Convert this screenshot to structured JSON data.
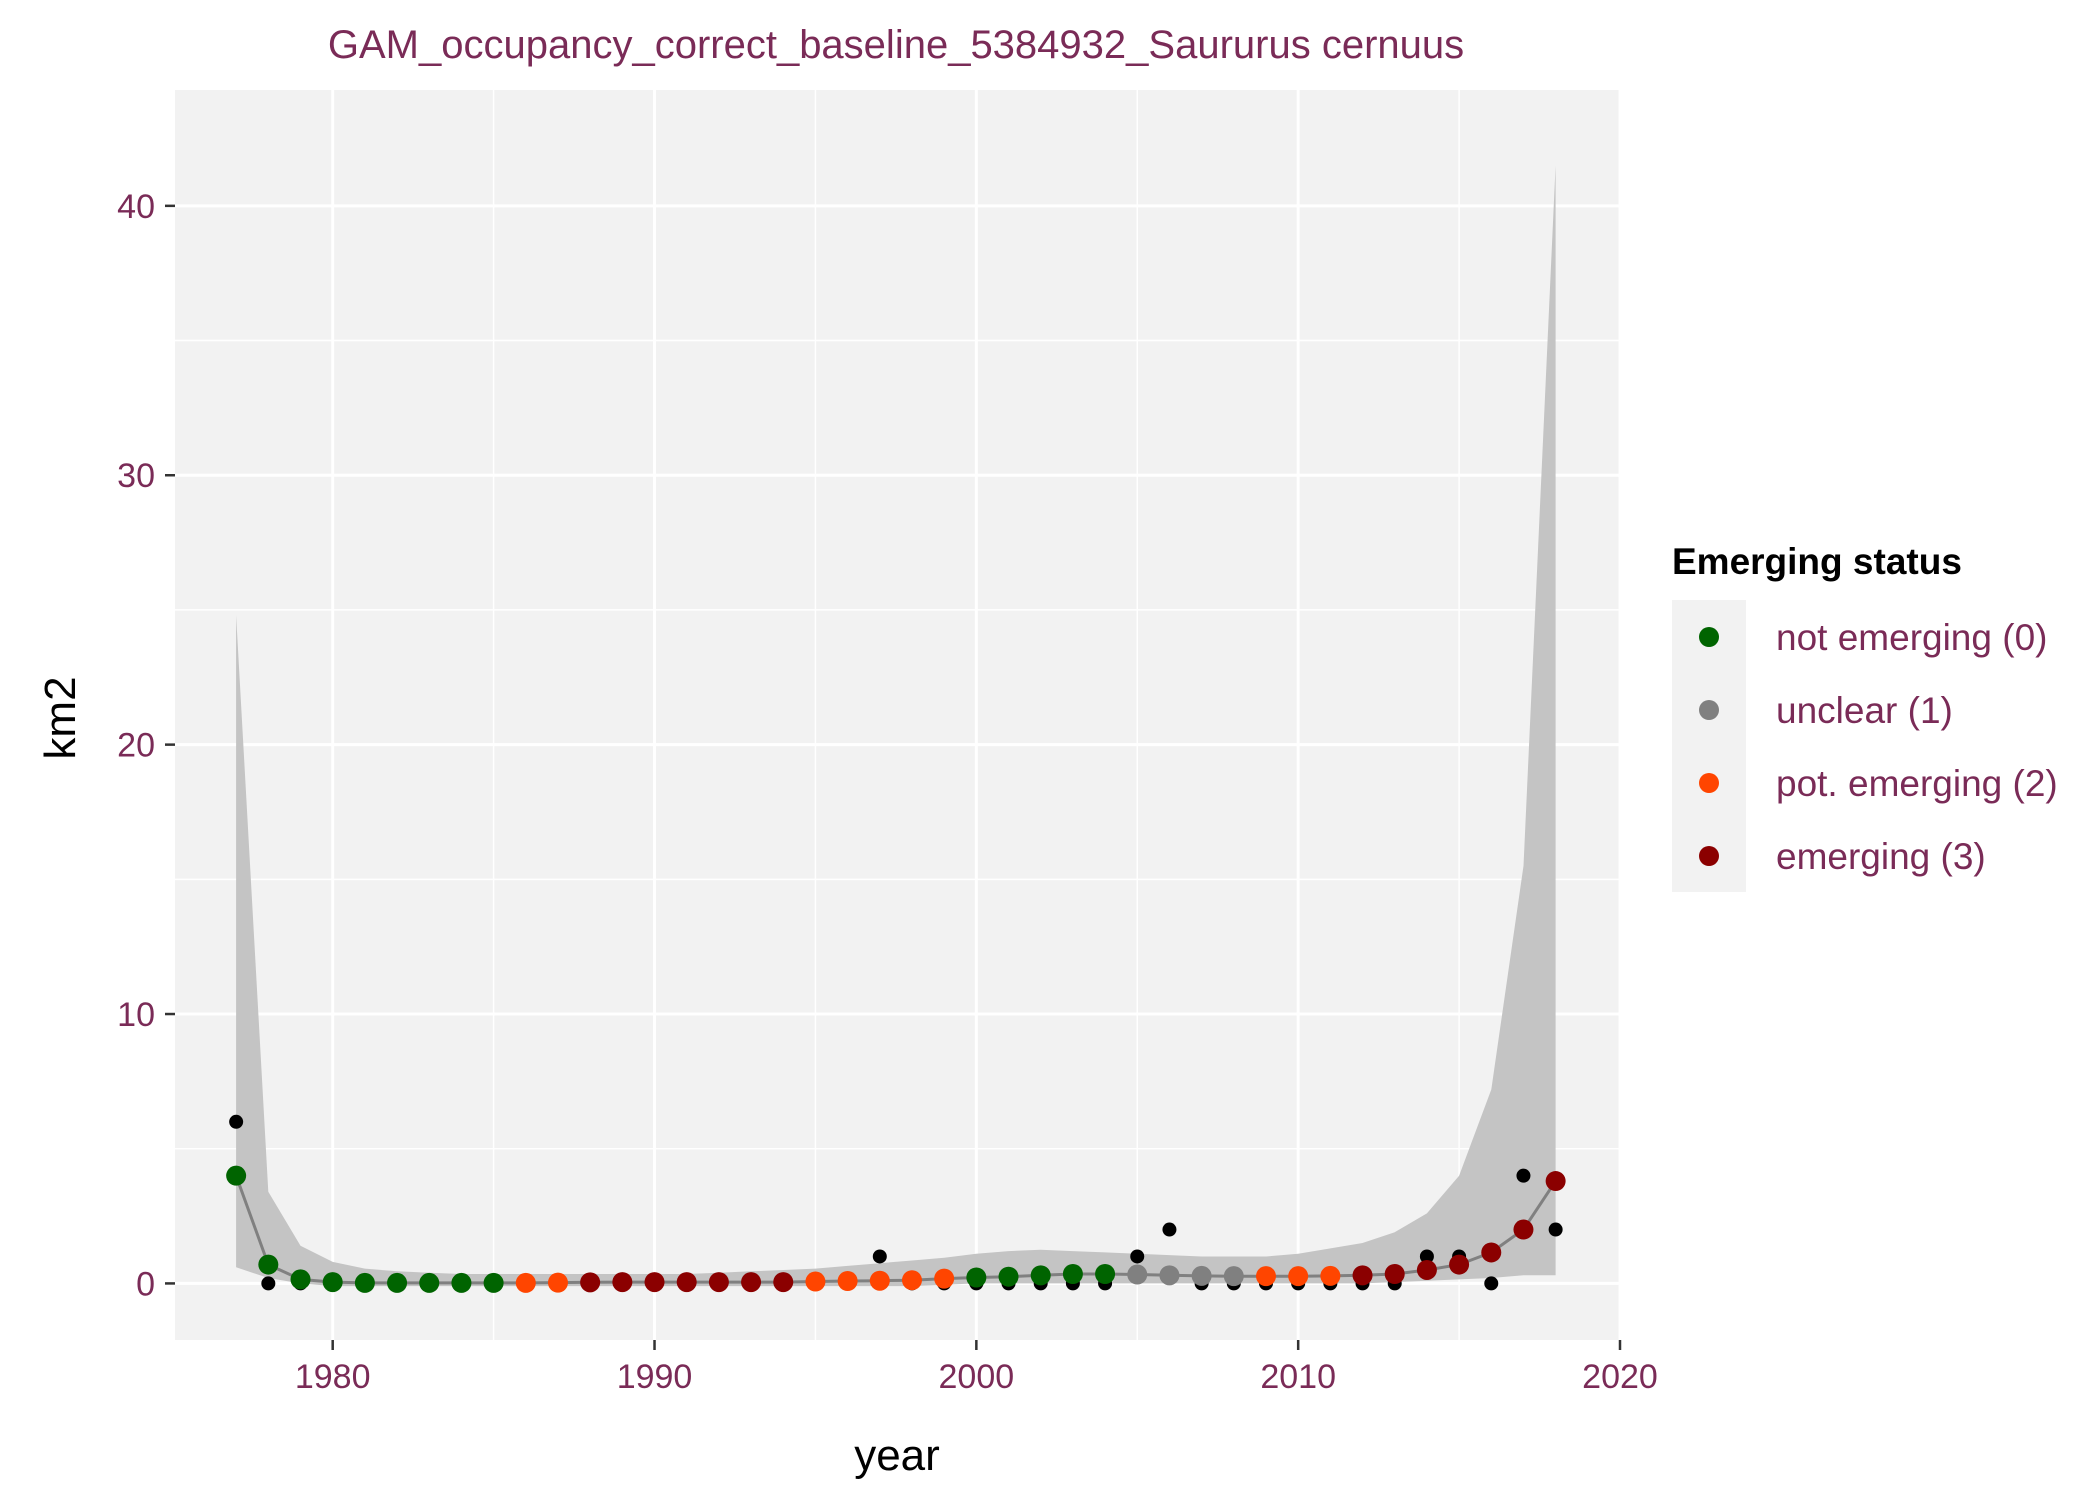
{
  "chart_data": {
    "type": "scatter",
    "title": "GAM_occupancy_correct_baseline_5384932_Saururus cernuus",
    "xlabel": "year",
    "ylabel": "km2",
    "xlim": [
      1975.1,
      2020
    ],
    "ylim": [
      -2.1,
      44.3
    ],
    "x_ticks": [
      1980,
      1990,
      2000,
      2010,
      2020
    ],
    "y_ticks": [
      0,
      10,
      20,
      30,
      40
    ],
    "grid": true,
    "legend": {
      "title": "Emerging status",
      "placement": "right",
      "entries": [
        {
          "label": "not emerging (0)",
          "color": "#006400"
        },
        {
          "label": "unclear (1)",
          "color": "#808080"
        },
        {
          "label": "pot. emerging (2)",
          "color": "#ff4500"
        },
        {
          "label": "emerging (3)",
          "color": "#8b0000"
        }
      ]
    },
    "colors": {
      "panel_bg": "#f2f2f2",
      "grid": "#ffffff",
      "ribbon": "#c4c4c4",
      "fit_line": "#808080",
      "observed": "#000000"
    },
    "observed": {
      "x": [
        1977,
        1978,
        1979,
        1980,
        1981,
        1982,
        1983,
        1984,
        1985,
        1986,
        1987,
        1988,
        1989,
        1990,
        1991,
        1992,
        1993,
        1994,
        1995,
        1996,
        1997,
        1998,
        1999,
        2000,
        2001,
        2002,
        2003,
        2004,
        2005,
        2006,
        2007,
        2008,
        2009,
        2010,
        2011,
        2012,
        2013,
        2014,
        2015,
        2016,
        2017,
        2018
      ],
      "y": [
        6,
        0,
        0,
        0,
        0,
        0,
        0,
        0,
        0,
        0,
        0,
        0,
        0,
        0,
        0,
        0,
        0,
        0,
        0,
        0,
        1,
        0,
        0,
        0,
        0,
        0,
        0,
        0,
        1,
        2,
        0,
        0,
        0,
        0,
        0,
        0,
        0,
        1,
        1,
        0,
        4,
        2
      ]
    },
    "fitted": {
      "x": [
        1977,
        1978,
        1979,
        1980,
        1981,
        1982,
        1983,
        1984,
        1985,
        1986,
        1987,
        1988,
        1989,
        1990,
        1991,
        1992,
        1993,
        1994,
        1995,
        1996,
        1997,
        1998,
        1999,
        2000,
        2001,
        2002,
        2003,
        2004,
        2005,
        2006,
        2007,
        2008,
        2009,
        2010,
        2011,
        2012,
        2013,
        2014,
        2015,
        2016,
        2017,
        2018
      ],
      "y": [
        4.0,
        0.7,
        0.15,
        0.05,
        0.02,
        0.02,
        0.02,
        0.02,
        0.02,
        0.02,
        0.03,
        0.04,
        0.05,
        0.05,
        0.05,
        0.05,
        0.05,
        0.05,
        0.07,
        0.09,
        0.1,
        0.12,
        0.18,
        0.22,
        0.25,
        0.3,
        0.35,
        0.35,
        0.33,
        0.3,
        0.28,
        0.27,
        0.27,
        0.27,
        0.28,
        0.3,
        0.35,
        0.5,
        0.7,
        1.15,
        2.0,
        3.8
      ],
      "status": [
        0,
        0,
        0,
        0,
        0,
        0,
        0,
        0,
        0,
        2,
        2,
        3,
        3,
        3,
        3,
        3,
        3,
        3,
        2,
        2,
        2,
        2,
        2,
        0,
        0,
        0,
        0,
        0,
        1,
        1,
        1,
        1,
        2,
        2,
        2,
        3,
        3,
        3,
        3,
        3,
        3,
        3
      ],
      "lower": [
        0.6,
        0.2,
        0.0,
        -0.1,
        -0.1,
        -0.1,
        -0.1,
        -0.1,
        -0.1,
        -0.1,
        -0.1,
        -0.1,
        -0.1,
        -0.1,
        -0.1,
        -0.1,
        -0.1,
        -0.1,
        -0.1,
        -0.1,
        -0.1,
        -0.1,
        -0.05,
        0.0,
        0.0,
        0.0,
        0.0,
        0.0,
        0.0,
        0.0,
        0.0,
        0.0,
        0.0,
        0.0,
        0.0,
        0.0,
        0.05,
        0.1,
        0.15,
        0.2,
        0.3,
        0.3
      ],
      "upper": [
        24.8,
        3.4,
        1.4,
        0.8,
        0.55,
        0.45,
        0.4,
        0.35,
        0.35,
        0.35,
        0.35,
        0.35,
        0.35,
        0.35,
        0.35,
        0.4,
        0.45,
        0.5,
        0.55,
        0.65,
        0.75,
        0.85,
        0.95,
        1.1,
        1.2,
        1.25,
        1.2,
        1.15,
        1.1,
        1.05,
        1.0,
        1.0,
        1.0,
        1.1,
        1.3,
        1.5,
        1.9,
        2.6,
        4.0,
        7.2,
        15.5,
        41.5
      ]
    }
  }
}
